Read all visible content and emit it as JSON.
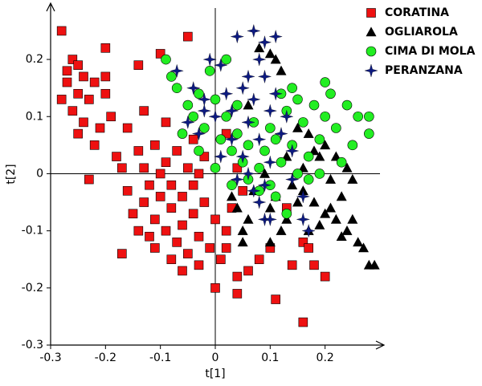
{
  "chart_data": {
    "type": "scatter",
    "x_label": "t[1]",
    "y_label": "t[2]",
    "xlim": [
      -0.3,
      0.3
    ],
    "ylim": [
      -0.3,
      0.29
    ],
    "xticks": [
      -0.3,
      -0.2,
      -0.1,
      0,
      0.1,
      0.2
    ],
    "yticks": [
      -0.3,
      -0.2,
      -0.1,
      0,
      0.1,
      0.2
    ],
    "legend": "top-right",
    "series": [
      {
        "name": "CORATINA",
        "color": "#ee1111",
        "marker": "square",
        "x": [
          -0.28,
          -0.27,
          -0.26,
          -0.25,
          -0.24,
          -0.23,
          -0.28,
          -0.26,
          -0.25,
          -0.22,
          -0.2,
          -0.2,
          -0.21,
          -0.19,
          -0.2,
          -0.18,
          -0.17,
          -0.16,
          -0.14,
          -0.13,
          -0.14,
          -0.1,
          -0.05,
          -0.23,
          -0.16,
          -0.15,
          -0.13,
          -0.12,
          -0.11,
          -0.1,
          -0.09,
          -0.08,
          -0.07,
          -0.06,
          -0.05,
          -0.04,
          -0.03,
          -0.02,
          -0.01,
          0.0,
          0.01,
          0.02,
          0.03,
          -0.11,
          -0.08,
          -0.06,
          -0.03,
          0.0,
          0.04,
          0.04,
          0.06,
          0.1,
          0.13,
          0.14,
          0.16,
          0.17,
          0.18,
          0.2,
          0.16,
          0.08,
          0.11,
          -0.17,
          -0.13,
          -0.11,
          -0.09,
          -0.07,
          -0.05,
          -0.03,
          -0.12,
          -0.1,
          -0.08,
          -0.06,
          -0.04,
          -0.02,
          0.02,
          0.05,
          -0.24,
          -0.27,
          -0.09,
          -0.04,
          0.04,
          -0.25,
          -0.22,
          -0.14,
          0.02
        ],
        "y": [
          0.25,
          0.18,
          0.2,
          0.19,
          0.17,
          0.13,
          0.13,
          0.11,
          0.14,
          0.16,
          0.14,
          0.17,
          0.08,
          0.1,
          0.22,
          0.03,
          0.01,
          0.08,
          0.04,
          0.11,
          0.19,
          0.21,
          0.24,
          -0.01,
          -0.03,
          -0.07,
          -0.05,
          -0.02,
          -0.08,
          -0.04,
          -0.1,
          -0.06,
          -0.12,
          -0.09,
          -0.14,
          -0.07,
          -0.11,
          -0.05,
          -0.13,
          -0.08,
          -0.15,
          -0.1,
          -0.06,
          -0.13,
          -0.15,
          -0.17,
          -0.16,
          -0.2,
          -0.18,
          -0.21,
          -0.17,
          -0.13,
          -0.06,
          -0.16,
          -0.12,
          -0.13,
          -0.16,
          -0.18,
          -0.26,
          -0.15,
          -0.22,
          -0.14,
          0.01,
          0.05,
          0.02,
          0.04,
          0.01,
          0.0,
          -0.11,
          0.0,
          -0.02,
          -0.04,
          -0.02,
          0.03,
          0.07,
          -0.03,
          0.09,
          0.16,
          0.09,
          0.06,
          0.01,
          0.07,
          0.05,
          -0.1,
          -0.13
        ]
      },
      {
        "name": "OGLIAROLA",
        "color": "#000000",
        "marker": "triangle",
        "x": [
          0.08,
          0.1,
          0.11,
          0.12,
          0.2,
          0.22,
          0.24,
          0.25,
          0.23,
          0.21,
          0.2,
          0.18,
          0.16,
          0.15,
          0.14,
          0.19,
          0.22,
          0.24,
          0.26,
          0.27,
          0.28,
          0.29,
          0.23,
          0.25,
          0.17,
          0.13,
          0.11,
          0.1,
          0.06,
          0.05,
          0.04,
          0.03,
          0.05,
          0.1,
          0.12,
          0.17,
          0.18,
          0.06,
          0.15,
          0.16,
          0.19,
          0.07,
          0.09,
          0.13,
          0.21
        ],
        "y": [
          0.22,
          0.21,
          0.2,
          0.18,
          0.05,
          0.03,
          0.01,
          -0.01,
          -0.04,
          -0.06,
          -0.07,
          -0.05,
          -0.03,
          -0.05,
          -0.02,
          -0.09,
          -0.08,
          -0.1,
          -0.12,
          -0.13,
          -0.16,
          -0.16,
          -0.11,
          -0.08,
          -0.1,
          -0.08,
          -0.04,
          -0.06,
          -0.08,
          -0.1,
          -0.06,
          -0.04,
          -0.12,
          -0.12,
          -0.1,
          0.07,
          0.04,
          0.12,
          0.08,
          0.01,
          0.03,
          -0.03,
          0.0,
          0.03,
          -0.01
        ]
      },
      {
        "name": "CIMA DI MOLA",
        "color": "#22ee22",
        "marker": "circle",
        "x": [
          -0.08,
          -0.09,
          -0.07,
          -0.05,
          -0.04,
          -0.03,
          -0.02,
          0.0,
          0.01,
          0.02,
          0.03,
          0.04,
          0.05,
          0.06,
          0.07,
          0.08,
          0.09,
          0.1,
          0.11,
          0.12,
          0.13,
          0.14,
          0.15,
          0.16,
          0.17,
          0.18,
          0.19,
          0.2,
          0.21,
          0.22,
          0.23,
          0.24,
          0.26,
          0.28,
          0.28,
          0.25,
          0.2,
          0.11,
          0.13,
          0.08,
          0.06,
          -0.06,
          -0.01,
          0.02,
          0.04,
          0.12,
          0.15,
          0.17,
          0.03,
          0.1,
          -0.03,
          0.0,
          0.14,
          0.19
        ],
        "y": [
          0.17,
          0.2,
          0.15,
          0.12,
          0.1,
          0.14,
          0.08,
          0.13,
          0.06,
          0.1,
          0.04,
          0.07,
          0.02,
          0.05,
          0.09,
          0.01,
          0.04,
          -0.02,
          0.06,
          0.02,
          0.11,
          0.05,
          0.0,
          0.09,
          0.03,
          0.12,
          0.06,
          0.1,
          0.14,
          0.08,
          0.02,
          0.12,
          0.1,
          0.1,
          0.07,
          0.05,
          0.16,
          -0.04,
          -0.07,
          -0.03,
          -0.01,
          0.07,
          0.18,
          0.2,
          0.12,
          0.14,
          0.13,
          -0.01,
          -0.02,
          0.08,
          0.04,
          0.01,
          0.15,
          0.0
        ]
      },
      {
        "name": "PERANZANA",
        "color": "#0d1a80",
        "marker": "star",
        "x": [
          0.04,
          0.07,
          0.09,
          0.11,
          0.08,
          0.09,
          -0.01,
          0.01,
          -0.07,
          -0.04,
          -0.02,
          0.0,
          0.02,
          0.03,
          0.05,
          0.06,
          0.07,
          0.08,
          0.1,
          0.11,
          0.12,
          0.13,
          0.03,
          0.05,
          0.06,
          0.07,
          0.08,
          0.09,
          0.1,
          0.16,
          0.17,
          0.16,
          0.14,
          -0.05,
          -0.03,
          0.01,
          0.04,
          0.06,
          0.14,
          0.1,
          -0.02,
          0.09
        ],
        "y": [
          0.24,
          0.25,
          0.23,
          0.24,
          0.2,
          0.17,
          0.2,
          0.19,
          0.18,
          0.15,
          0.13,
          0.1,
          0.14,
          0.11,
          0.15,
          0.09,
          0.13,
          0.06,
          0.11,
          0.14,
          0.07,
          0.1,
          0.06,
          0.03,
          0.0,
          -0.03,
          -0.05,
          -0.08,
          -0.08,
          -0.08,
          -0.1,
          -0.04,
          -0.01,
          0.09,
          0.07,
          0.03,
          -0.01,
          0.17,
          0.04,
          0.02,
          0.11,
          -0.02
        ]
      }
    ]
  }
}
